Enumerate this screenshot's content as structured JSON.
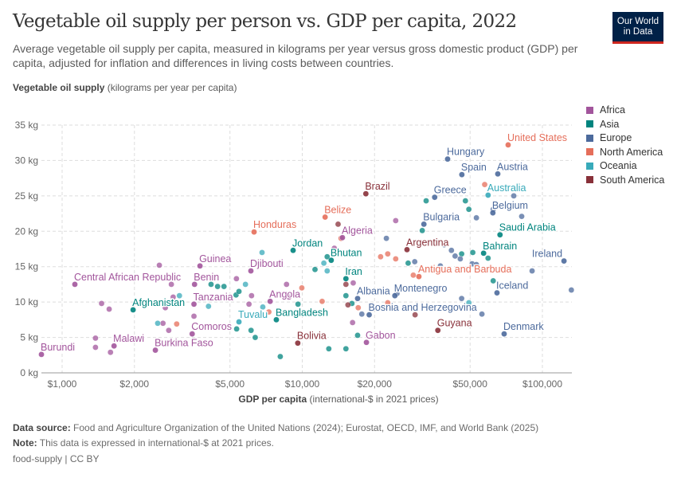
{
  "header": {
    "title": "Vegetable oil supply per person vs. GDP per capita, 2022",
    "subtitle": "Average vegetable oil supply per capita, measured in kilograms per year versus gross domestic product (GDP) per capita, adjusted for inflation and differences in living costs between countries.",
    "logo": "Our World in Data"
  },
  "footer": {
    "source_label": "Data source:",
    "source": "Food and Agriculture Organization of the United Nations (2024); Eurostat, OECD, IMF, and World Bank (2025)",
    "note_label": "Note:",
    "note": "This data is expressed in international-$ at 2021 prices.",
    "license": "food-supply | CC BY"
  },
  "chart_data": {
    "type": "scatter",
    "title": "Vegetable oil supply per person vs. GDP per capita, 2022",
    "ylabel_bold": "Vegetable oil supply",
    "ylabel_rest": "(kilograms per year per capita)",
    "xlabel_bold": "GDP per capita",
    "xlabel_rest": "(international-$ in 2021 prices)",
    "x_scale": "log",
    "xlim": [
      820,
      133000
    ],
    "ylim": [
      0,
      35
    ],
    "grid": true,
    "legend_placement": "right",
    "x_ticks": [
      {
        "v": 1000,
        "label": "$1,000"
      },
      {
        "v": 2000,
        "label": "$2,000"
      },
      {
        "v": 5000,
        "label": "$5,000"
      },
      {
        "v": 10000,
        "label": "$10,000"
      },
      {
        "v": 20000,
        "label": "$20,000"
      },
      {
        "v": 50000,
        "label": "$50,000"
      },
      {
        "v": 100000,
        "label": "$100,000"
      }
    ],
    "y_ticks": [
      {
        "v": 0,
        "label": "0 kg"
      },
      {
        "v": 5,
        "label": "5 kg"
      },
      {
        "v": 10,
        "label": "10 kg"
      },
      {
        "v": 15,
        "label": "15 kg"
      },
      {
        "v": 20,
        "label": "20 kg"
      },
      {
        "v": 25,
        "label": "25 kg"
      },
      {
        "v": 30,
        "label": "30 kg"
      },
      {
        "v": 35,
        "label": "35 kg"
      }
    ],
    "legend": [
      {
        "name": "Africa",
        "color": "#a2559c"
      },
      {
        "name": "Asia",
        "color": "#00847e"
      },
      {
        "name": "Europe",
        "color": "#4c6a9c"
      },
      {
        "name": "North America",
        "color": "#e56e5a"
      },
      {
        "name": "Oceania",
        "color": "#38aaba"
      },
      {
        "name": "South America",
        "color": "#883039"
      }
    ],
    "points": [
      {
        "label": "Burundi",
        "region": "Africa",
        "x": 820,
        "y": 2.6
      },
      {
        "label": "Malawi",
        "region": "Africa",
        "x": 1645,
        "y": 3.8
      },
      {
        "label": "Burkina Faso",
        "region": "Africa",
        "x": 2445,
        "y": 3.2
      },
      {
        "label": "Central African Republic",
        "region": "Africa",
        "x": 1130,
        "y": 12.5
      },
      {
        "label": "Afghanistan",
        "region": "Asia",
        "x": 1975,
        "y": 8.9
      },
      {
        "label": "Guinea",
        "region": "Africa",
        "x": 3750,
        "y": 15.1
      },
      {
        "label": "Benin",
        "region": "Africa",
        "x": 3560,
        "y": 12.5
      },
      {
        "label": "Tanzania",
        "region": "Africa",
        "x": 3540,
        "y": 9.7
      },
      {
        "label": "Comoros",
        "region": "Africa",
        "x": 3480,
        "y": 5.5
      },
      {
        "label": "Djibouti",
        "region": "Africa",
        "x": 6110,
        "y": 14.4
      },
      {
        "label": "Honduras",
        "region": "North America",
        "x": 6300,
        "y": 19.9
      },
      {
        "label": "Jordan",
        "region": "Asia",
        "x": 9160,
        "y": 17.3
      },
      {
        "label": "Tuvalu",
        "region": "Oceania",
        "x": 5450,
        "y": 7.2
      },
      {
        "label": "Angola",
        "region": "Africa",
        "x": 7350,
        "y": 10.1
      },
      {
        "label": "Bangladesh",
        "region": "Asia",
        "x": 7800,
        "y": 7.5
      },
      {
        "label": "Bolivia",
        "region": "South America",
        "x": 9580,
        "y": 4.2
      },
      {
        "label": "Belize",
        "region": "North America",
        "x": 12450,
        "y": 22
      },
      {
        "label": "Algeria",
        "region": "Africa",
        "x": 14700,
        "y": 19.1
      },
      {
        "label": "Bhutan",
        "region": "Asia",
        "x": 13200,
        "y": 15.9
      },
      {
        "label": "Iran",
        "region": "Asia",
        "x": 15200,
        "y": 13.3
      },
      {
        "label": "Brazil",
        "region": "South America",
        "x": 18400,
        "y": 25.3
      },
      {
        "label": "Albania",
        "region": "Europe",
        "x": 17000,
        "y": 10.5
      },
      {
        "label": "Gabon",
        "region": "Africa",
        "x": 18500,
        "y": 4.3
      },
      {
        "label": "Montenegro",
        "region": "Europe",
        "x": 24300,
        "y": 10.9
      },
      {
        "label": "Bosnia and Herzegovina",
        "region": "Europe",
        "x": 19000,
        "y": 8.2
      },
      {
        "label": "Argentina",
        "region": "South America",
        "x": 27300,
        "y": 17.4
      },
      {
        "label": "Antigua and Barbuda",
        "region": "North America",
        "x": 30600,
        "y": 13.6
      },
      {
        "label": "Guyana",
        "region": "South America",
        "x": 36700,
        "y": 6.0
      },
      {
        "label": "Bulgaria",
        "region": "Europe",
        "x": 32100,
        "y": 21.0
      },
      {
        "label": "Greece",
        "region": "Europe",
        "x": 35600,
        "y": 24.8
      },
      {
        "label": "Hungary",
        "region": "Europe",
        "x": 40300,
        "y": 30.2
      },
      {
        "label": "Spain",
        "region": "Europe",
        "x": 46200,
        "y": 28.0
      },
      {
        "label": "Austria",
        "region": "Europe",
        "x": 65200,
        "y": 28.1
      },
      {
        "label": "United States",
        "region": "North America",
        "x": 72000,
        "y": 32.2
      },
      {
        "label": "Australia",
        "region": "Oceania",
        "x": 59400,
        "y": 25.1
      },
      {
        "label": "Belgium",
        "region": "Europe",
        "x": 62200,
        "y": 22.6
      },
      {
        "label": "Saudi Arabia",
        "region": "Asia",
        "x": 66600,
        "y": 19.5
      },
      {
        "label": "Bahrain",
        "region": "Asia",
        "x": 56900,
        "y": 16.9
      },
      {
        "label": "Ireland",
        "region": "Europe",
        "x": 123000,
        "y": 15.8
      },
      {
        "label": "Iceland",
        "region": "Europe",
        "x": 64700,
        "y": 11.3
      },
      {
        "label": "Denmark",
        "region": "Europe",
        "x": 69300,
        "y": 5.5
      },
      {
        "region": "Africa",
        "x": 1377,
        "y": 4.9
      },
      {
        "region": "Africa",
        "x": 1377,
        "y": 3.6
      },
      {
        "region": "Africa",
        "x": 1590,
        "y": 2.9
      },
      {
        "region": "Africa",
        "x": 1460,
        "y": 9.8
      },
      {
        "region": "Africa",
        "x": 1570,
        "y": 9.0
      },
      {
        "region": "Africa",
        "x": 2540,
        "y": 15.2
      },
      {
        "region": "Africa",
        "x": 2630,
        "y": 7.0
      },
      {
        "region": "Africa",
        "x": 2780,
        "y": 6.0
      },
      {
        "region": "Africa",
        "x": 2900,
        "y": 10.7
      },
      {
        "region": "Africa",
        "x": 2690,
        "y": 9.2
      },
      {
        "region": "Africa",
        "x": 3540,
        "y": 8.0
      },
      {
        "region": "Africa",
        "x": 2850,
        "y": 12.5
      },
      {
        "region": "Africa",
        "x": 6150,
        "y": 10.9
      },
      {
        "region": "Africa",
        "x": 6000,
        "y": 9.7
      },
      {
        "region": "Africa",
        "x": 5320,
        "y": 13.3
      },
      {
        "region": "Africa",
        "x": 8600,
        "y": 12.5
      },
      {
        "region": "Africa",
        "x": 8800,
        "y": 10.7
      },
      {
        "region": "Africa",
        "x": 13600,
        "y": 17.6
      },
      {
        "region": "Africa",
        "x": 24500,
        "y": 21.5
      },
      {
        "region": "Africa",
        "x": 16300,
        "y": 12.7
      },
      {
        "region": "Africa",
        "x": 16200,
        "y": 7.1
      },
      {
        "region": "Asia",
        "x": 4170,
        "y": 12.5
      },
      {
        "region": "Asia",
        "x": 4440,
        "y": 12.2
      },
      {
        "region": "Asia",
        "x": 4720,
        "y": 12.2
      },
      {
        "region": "Asia",
        "x": 5300,
        "y": 11.0
      },
      {
        "region": "Asia",
        "x": 5450,
        "y": 11.5
      },
      {
        "region": "Asia",
        "x": 5330,
        "y": 6.2
      },
      {
        "region": "Asia",
        "x": 6120,
        "y": 6.0
      },
      {
        "region": "Asia",
        "x": 6370,
        "y": 5.0
      },
      {
        "region": "Asia",
        "x": 8100,
        "y": 2.3
      },
      {
        "region": "Asia",
        "x": 12900,
        "y": 3.4
      },
      {
        "region": "Asia",
        "x": 12700,
        "y": 16.4
      },
      {
        "region": "Asia",
        "x": 11300,
        "y": 14.6
      },
      {
        "region": "Asia",
        "x": 15200,
        "y": 10.9
      },
      {
        "region": "Asia",
        "x": 16100,
        "y": 9.8
      },
      {
        "region": "Asia",
        "x": 17000,
        "y": 5.3
      },
      {
        "region": "Asia",
        "x": 15200,
        "y": 3.4
      },
      {
        "region": "Asia",
        "x": 32800,
        "y": 24.3
      },
      {
        "region": "Asia",
        "x": 33800,
        "y": 22.1
      },
      {
        "region": "Asia",
        "x": 47800,
        "y": 24.3
      },
      {
        "region": "Asia",
        "x": 49400,
        "y": 23.1
      },
      {
        "region": "Asia",
        "x": 51300,
        "y": 17.0
      },
      {
        "region": "Asia",
        "x": 46100,
        "y": 16.8
      },
      {
        "region": "Asia",
        "x": 59400,
        "y": 16.2
      },
      {
        "region": "Asia",
        "x": 62400,
        "y": 13.0
      },
      {
        "region": "Asia",
        "x": 27600,
        "y": 15.5
      },
      {
        "region": "Asia",
        "x": 31600,
        "y": 20.1
      },
      {
        "region": "Asia",
        "x": 9600,
        "y": 9.7
      },
      {
        "region": "Europe",
        "x": 22400,
        "y": 19.0
      },
      {
        "region": "Europe",
        "x": 39000,
        "y": 18.1
      },
      {
        "region": "Europe",
        "x": 41800,
        "y": 17.3
      },
      {
        "region": "Europe",
        "x": 43300,
        "y": 16.5
      },
      {
        "region": "Europe",
        "x": 37600,
        "y": 15.1
      },
      {
        "region": "Europe",
        "x": 51000,
        "y": 15.4
      },
      {
        "region": "Europe",
        "x": 53100,
        "y": 15.3
      },
      {
        "region": "Europe",
        "x": 45500,
        "y": 16.1
      },
      {
        "region": "Europe",
        "x": 46100,
        "y": 10.5
      },
      {
        "region": "Europe",
        "x": 90600,
        "y": 14.4
      },
      {
        "region": "Europe",
        "x": 132000,
        "y": 11.7
      },
      {
        "region": "Europe",
        "x": 29400,
        "y": 15.7
      },
      {
        "region": "Europe",
        "x": 82000,
        "y": 22.1
      },
      {
        "region": "Europe",
        "x": 62400,
        "y": 23.1
      },
      {
        "region": "Europe",
        "x": 76000,
        "y": 25.0
      },
      {
        "region": "Europe",
        "x": 53100,
        "y": 21.9
      },
      {
        "region": "Europe",
        "x": 56000,
        "y": 8.3
      },
      {
        "region": "Europe",
        "x": 24800,
        "y": 11.2
      },
      {
        "region": "Europe",
        "x": 17700,
        "y": 8.3
      },
      {
        "region": "North America",
        "x": 14500,
        "y": 19.0
      },
      {
        "region": "North America",
        "x": 16600,
        "y": 16.9
      },
      {
        "region": "North America",
        "x": 21200,
        "y": 16.4
      },
      {
        "region": "North America",
        "x": 22700,
        "y": 16.8
      },
      {
        "region": "North America",
        "x": 24500,
        "y": 16.1
      },
      {
        "region": "North America",
        "x": 17100,
        "y": 9.2
      },
      {
        "region": "North America",
        "x": 29000,
        "y": 13.8
      },
      {
        "region": "North America",
        "x": 9960,
        "y": 12.0
      },
      {
        "region": "North America",
        "x": 12100,
        "y": 10.1
      },
      {
        "region": "North America",
        "x": 7260,
        "y": 8.6
      },
      {
        "region": "North America",
        "x": 3000,
        "y": 6.9
      },
      {
        "region": "North America",
        "x": 57500,
        "y": 26.6
      },
      {
        "region": "North America",
        "x": 22700,
        "y": 9.9
      },
      {
        "region": "Oceania",
        "x": 6800,
        "y": 17.0
      },
      {
        "region": "Oceania",
        "x": 5800,
        "y": 12.5
      },
      {
        "region": "Oceania",
        "x": 4070,
        "y": 9.4
      },
      {
        "region": "Oceania",
        "x": 3080,
        "y": 10.9
      },
      {
        "region": "Oceania",
        "x": 2500,
        "y": 7.0
      },
      {
        "region": "Oceania",
        "x": 6850,
        "y": 9.3
      },
      {
        "region": "Oceania",
        "x": 12300,
        "y": 15.5
      },
      {
        "region": "Oceania",
        "x": 12700,
        "y": 14.4
      },
      {
        "region": "Oceania",
        "x": 49400,
        "y": 9.9
      },
      {
        "region": "South America",
        "x": 14100,
        "y": 21.0
      },
      {
        "region": "South America",
        "x": 15200,
        "y": 12.5
      },
      {
        "region": "South America",
        "x": 15500,
        "y": 9.6
      },
      {
        "region": "South America",
        "x": 29500,
        "y": 8.2
      }
    ]
  }
}
